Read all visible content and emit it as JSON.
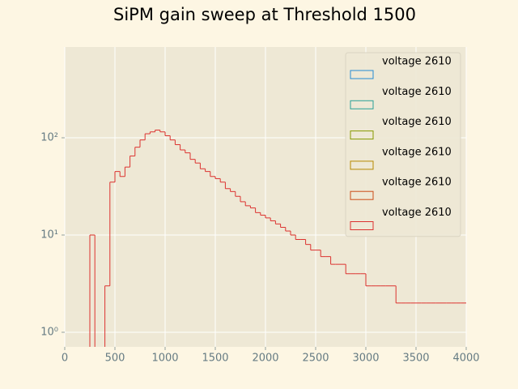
{
  "chart_data": {
    "type": "step-histogram",
    "title": "SiPM gain sweep at Threshold 1500",
    "bins": [
      0,
      50,
      100,
      150,
      200,
      250,
      300,
      350,
      400,
      450,
      500,
      550,
      600,
      650,
      700,
      750,
      800,
      850,
      900,
      950,
      1000,
      1050,
      1100,
      1150,
      1200,
      1250,
      1300,
      1350,
      1400,
      1450,
      1500,
      1550,
      1600,
      1650,
      1700,
      1750,
      1800,
      1850,
      1900,
      1950,
      2000,
      2050,
      2100,
      2150,
      2200,
      2250,
      2300,
      2350,
      2400,
      2450,
      2500,
      2550,
      2600,
      2650,
      2700,
      2750,
      2800,
      2850,
      2900,
      2950,
      3000,
      3050,
      3100,
      3150,
      3200,
      3250,
      3300,
      3350,
      3400,
      3450,
      3500,
      3550,
      3600,
      3650,
      3700,
      3750,
      3800,
      3850,
      3900,
      3950,
      4000
    ],
    "series": [
      {
        "name": "voltage 2610",
        "color": "#268bd2"
      },
      {
        "name": "voltage 2610",
        "color": "#2aa198"
      },
      {
        "name": "voltage 2610",
        "color": "#859900"
      },
      {
        "name": "voltage 2610",
        "color": "#b58900"
      },
      {
        "name": "voltage 2610",
        "color": "#cb4b16"
      },
      {
        "name": "voltage 2610",
        "color": "#dc322f",
        "values": [
          0,
          0,
          0,
          0,
          0,
          10,
          0,
          0,
          3,
          35,
          45,
          40,
          50,
          65,
          80,
          95,
          110,
          115,
          120,
          115,
          105,
          95,
          85,
          75,
          70,
          60,
          55,
          48,
          45,
          40,
          38,
          35,
          30,
          28,
          25,
          22,
          20,
          19,
          17,
          16,
          15,
          14,
          13,
          12,
          11,
          10,
          9,
          9,
          8,
          7,
          7,
          6,
          6,
          5,
          5,
          5,
          4,
          4,
          4,
          4,
          3,
          3,
          3,
          3,
          3,
          3,
          2,
          2,
          2,
          2,
          2,
          2,
          2,
          2,
          2,
          2,
          2,
          2,
          2,
          2
        ]
      }
    ],
    "log_y": true,
    "grid": true,
    "legend": "upper right",
    "xlim": [
      0,
      4000
    ],
    "ylim": [
      0.708,
      858
    ],
    "xticks": [
      0,
      500,
      1000,
      1500,
      2000,
      2500,
      3000,
      3500,
      4000
    ],
    "yticks": [
      {
        "value": 1,
        "label": "10⁰"
      },
      {
        "value": 10,
        "label": "10¹"
      },
      {
        "value": 100,
        "label": "10²"
      }
    ]
  }
}
